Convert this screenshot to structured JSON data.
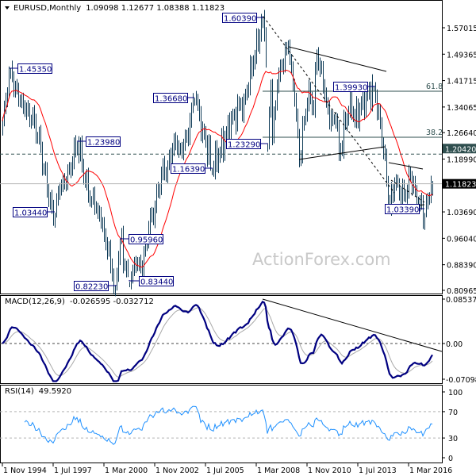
{
  "header": {
    "symbol": "EURUSD,Monthly",
    "ohlc": "1.09098 1.12677 1.08388 1.11823",
    "menu_icon": "triangle-down-icon"
  },
  "watermark": "ActionForex.com",
  "colors": {
    "bars": "#0f3b57",
    "ma": "#ff0000",
    "macd": "#000080",
    "signal": "#a9a9a9",
    "rsi": "#1e90ff",
    "label": "#000080",
    "level_box": "#2f4f4f",
    "current_box": "#000000"
  },
  "chart_data": [
    {
      "type": "ohlc-bar",
      "title": "EURUSD,Monthly",
      "last_ohlc": {
        "open": 1.09098,
        "high": 1.12677,
        "low": 1.08388,
        "close": 1.11823
      },
      "ylim": [
        0.80965,
        1.57015
      ],
      "y_ticks": [
        "1.57015",
        "1.49365",
        "1.41715",
        "1.34065",
        "1.26640",
        "1.18990",
        "1.03690",
        "0.96040",
        "0.88390",
        "0.80965"
      ],
      "current_price": "1.11823",
      "level": "1.20420",
      "fibonacci": [
        {
          "label": "61.8",
          "value": 1.3863
        },
        {
          "label": "38.2",
          "value": 1.253
        }
      ],
      "x_ticks": [
        "1 Nov 1994",
        "1 Jul 1997",
        "1 Mar 2000",
        "1 Nov 2002",
        "1 Jul 2005",
        "1 Mar 2008",
        "1 Nov 2010",
        "1 Jul 2013",
        "1 Mar 2016"
      ],
      "pivot_labels": [
        {
          "date": "1995-04",
          "value": "1.45350"
        },
        {
          "date": "1997-08",
          "value": "1.03440"
        },
        {
          "date": "1998-10",
          "value": "1.23980"
        },
        {
          "date": "2000-10",
          "value": "0.82230"
        },
        {
          "date": "2001-01",
          "value": "0.95960"
        },
        {
          "date": "2001-07",
          "value": "0.83440"
        },
        {
          "date": "2004-12",
          "value": "1.36680"
        },
        {
          "date": "2005-11",
          "value": "1.16390"
        },
        {
          "date": "2008-07",
          "value": "1.60390"
        },
        {
          "date": "2008-10",
          "value": "1.23290"
        },
        {
          "date": "2014-05",
          "value": "1.39930"
        },
        {
          "date": "2017-01",
          "value": "1.03390"
        }
      ],
      "price_path": [
        [
          "1994-11",
          1.3
        ],
        [
          "1995-02",
          1.38
        ],
        [
          "1995-04",
          1.4535
        ],
        [
          "1995-07",
          1.4
        ],
        [
          "1995-11",
          1.36
        ],
        [
          "1996-03",
          1.33
        ],
        [
          "1996-07",
          1.3
        ],
        [
          "1996-11",
          1.22
        ],
        [
          "1997-03",
          1.1
        ],
        [
          "1997-06",
          1.05
        ],
        [
          "1997-08",
          1.0344
        ],
        [
          "1997-11",
          1.1
        ],
        [
          "1998-03",
          1.12
        ],
        [
          "1998-07",
          1.18
        ],
        [
          "1998-10",
          1.2398
        ],
        [
          "1999-01",
          1.17
        ],
        [
          "1999-05",
          1.08
        ],
        [
          "1999-09",
          1.05
        ],
        [
          "2000-01",
          1.0
        ],
        [
          "2000-05",
          0.92
        ],
        [
          "2000-10",
          0.8223
        ],
        [
          "2001-01",
          0.9596
        ],
        [
          "2001-04",
          0.88
        ],
        [
          "2001-07",
          0.8344
        ],
        [
          "2001-11",
          0.88
        ],
        [
          "2002-03",
          0.87
        ],
        [
          "2002-07",
          0.99
        ],
        [
          "2002-11",
          1.05
        ],
        [
          "2003-03",
          1.15
        ],
        [
          "2003-07",
          1.17
        ],
        [
          "2003-11",
          1.25
        ],
        [
          "2004-03",
          1.22
        ],
        [
          "2004-07",
          1.26
        ],
        [
          "2004-12",
          1.3668
        ],
        [
          "2005-05",
          1.28
        ],
        [
          "2005-11",
          1.1639
        ],
        [
          "2006-03",
          1.2
        ],
        [
          "2006-07",
          1.25
        ],
        [
          "2007-01",
          1.32
        ],
        [
          "2007-07",
          1.36
        ],
        [
          "2008-01",
          1.47
        ],
        [
          "2008-07",
          1.6039
        ],
        [
          "2008-08",
          1.55
        ],
        [
          "2008-09",
          1.47
        ],
        [
          "2008-10",
          1.2329
        ],
        [
          "2008-12",
          1.4
        ],
        [
          "2009-01",
          1.25
        ],
        [
          "2009-04",
          1.4
        ],
        [
          "2009-07",
          1.46
        ],
        [
          "2009-11",
          1.5145
        ],
        [
          "2010-03",
          1.36
        ],
        [
          "2010-06",
          1.1876
        ],
        [
          "2010-09",
          1.3
        ],
        [
          "2010-12",
          1.4
        ],
        [
          "2011-03",
          1.33
        ],
        [
          "2011-05",
          1.494
        ],
        [
          "2011-09",
          1.4
        ],
        [
          "2012-01",
          1.29
        ],
        [
          "2012-05",
          1.3
        ],
        [
          "2012-07",
          1.2042
        ],
        [
          "2012-11",
          1.29
        ],
        [
          "2013-02",
          1.37
        ],
        [
          "2013-05",
          1.3
        ],
        [
          "2013-09",
          1.35
        ],
        [
          "2014-01",
          1.38
        ],
        [
          "2014-05",
          1.3993
        ],
        [
          "2014-08",
          1.33
        ],
        [
          "2014-11",
          1.21
        ],
        [
          "2015-03",
          1.0462
        ],
        [
          "2015-06",
          1.12
        ],
        [
          "2015-09",
          1.09
        ],
        [
          "2016-01",
          1.08
        ],
        [
          "2016-04",
          1.14
        ],
        [
          "2016-07",
          1.1
        ],
        [
          "2016-10",
          1.06
        ],
        [
          "2017-01",
          1.0339
        ],
        [
          "2017-04",
          1.08
        ],
        [
          "2017-06",
          1.11823
        ]
      ]
    },
    {
      "type": "line",
      "title": "MACD(12,26,9)",
      "values_text": "-0.026595 -0.032712",
      "series": [
        {
          "name": "MACD"
        },
        {
          "name": "Signal"
        }
      ],
      "ylim": [
        -0.070989,
        0.085379
      ],
      "y_ticks": [
        "0.085379",
        "0.00",
        "-0.070989"
      ]
    },
    {
      "type": "line",
      "title": "RSI(14)",
      "values_text": "49.5920",
      "ylim": [
        0,
        100
      ],
      "y_ticks": [
        "100",
        "70",
        "30",
        "0"
      ],
      "levels": [
        70,
        30
      ]
    }
  ]
}
